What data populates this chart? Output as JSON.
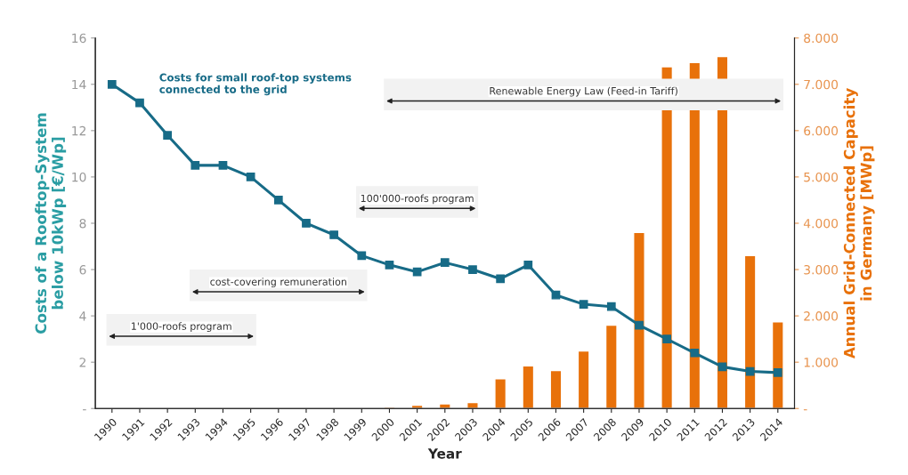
{
  "chart_data": {
    "type": "line",
    "xlabel": "Year",
    "ylabel": "Costs of a Rooftop-System\nbelow 10kWp [€/Wp]",
    "y2label": "Annual Grid-Connected Capacity\nin Germany [MWp]",
    "categories": [
      "1990",
      "1991",
      "1992",
      "1993",
      "1994",
      "1995",
      "1996",
      "1997",
      "1998",
      "1999",
      "2000",
      "2001",
      "2002",
      "2003",
      "2004",
      "2005",
      "2006",
      "2007",
      "2008",
      "2009",
      "2010",
      "2011",
      "2012",
      "2013",
      "2014"
    ],
    "series": [
      {
        "name": "Costs for small roof-top systems\nconnected to the grid",
        "color": "#176b87",
        "values": [
          14,
          13.2,
          11.8,
          10.5,
          10.5,
          10,
          9,
          8,
          7.5,
          6.6,
          6.2,
          5.9,
          6.3,
          6.0,
          5.6,
          6.2,
          4.9,
          4.5,
          4.4,
          3.6,
          3.0,
          2.4,
          1.8,
          1.6,
          1.55
        ]
      },
      {
        "type": "bar",
        "axis": "y2",
        "color": "#e8710a",
        "values": [
          null,
          null,
          null,
          null,
          null,
          null,
          null,
          null,
          null,
          null,
          30,
          70,
          100,
          130,
          640,
          920,
          820,
          1240,
          1800,
          3800,
          7380,
          7470,
          7600,
          3300,
          1870
        ]
      }
    ],
    "ylim": [
      0,
      16
    ],
    "yticks": [
      {
        "value": 0,
        "label": "-"
      },
      2,
      4,
      6,
      8,
      10,
      12,
      14,
      16
    ],
    "y2lim": [
      0,
      8000
    ],
    "y2ticks": [
      {
        "value": 0,
        "label": "-"
      },
      {
        "value": 1000,
        "label": "1.000"
      },
      {
        "value": 2000,
        "label": "2.000"
      },
      {
        "value": 3000,
        "label": "3.000"
      },
      {
        "value": 4000,
        "label": "4.000"
      },
      {
        "value": 5000,
        "label": "5.000"
      },
      {
        "value": 6000,
        "label": "6.000"
      },
      {
        "value": 7000,
        "label": "7.000"
      },
      {
        "value": 8000,
        "label": "8.000"
      }
    ],
    "bands": [
      {
        "axis": "x",
        "from": "1990",
        "to": "1995",
        "label": "1'000-roofs program",
        "color": "#f2f2f2"
      },
      {
        "axis": "x",
        "from": "1993",
        "to": "1999",
        "label": "cost-covering remuneration",
        "color": "#f2f2f2"
      },
      {
        "axis": "x",
        "from": "1999",
        "to": "2003",
        "label": "100'000-roofs program",
        "color": "#f2f2f2"
      },
      {
        "axis": "x",
        "from": "2000",
        "to": "2014",
        "label": "Renewable Energy Law (Feed-in Tariff)",
        "color": "#f2f2f2"
      }
    ],
    "marker": "square",
    "grid": false,
    "legend": false
  }
}
